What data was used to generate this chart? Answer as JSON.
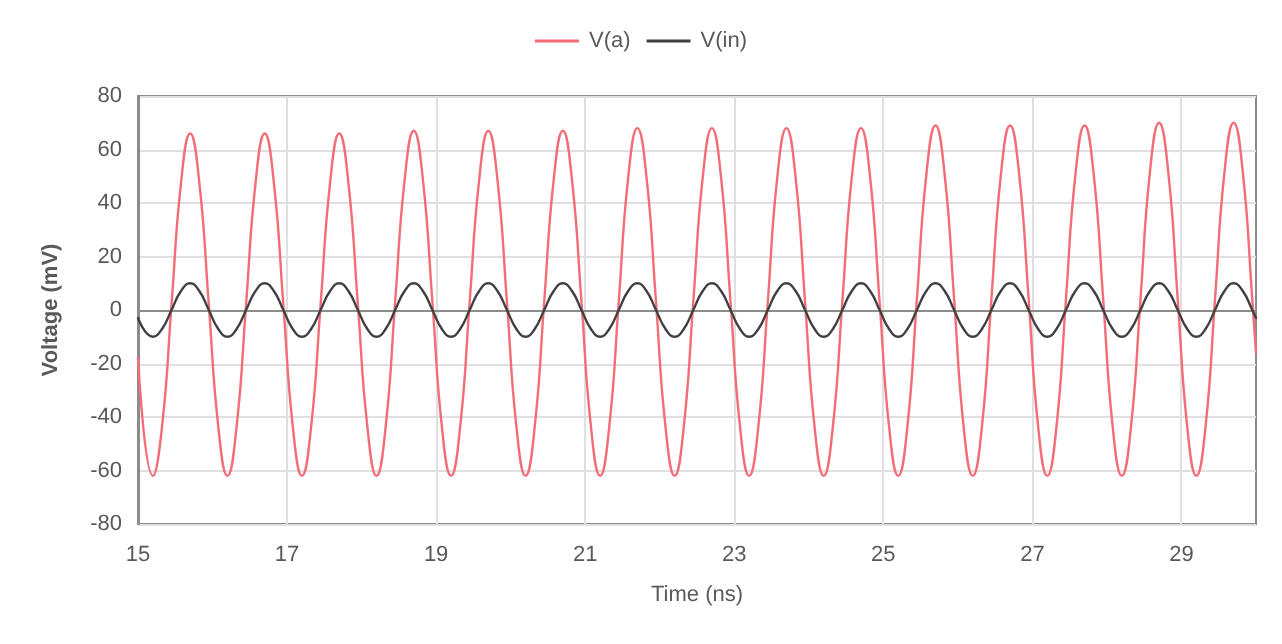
{
  "chart_data": {
    "type": "line",
    "xlabel": "Time (ns)",
    "ylabel": "Voltage (mV)",
    "xlim": [
      15,
      30
    ],
    "ylim": [
      -80,
      80
    ],
    "xticks": [
      15,
      17,
      19,
      21,
      23,
      25,
      27,
      29
    ],
    "yticks": [
      -80,
      -60,
      -40,
      -20,
      0,
      20,
      40,
      60,
      80
    ],
    "grid": true,
    "legend": "top",
    "marker": "none",
    "line_style": "solid",
    "x": [
      15,
      15.2,
      15.325,
      15.45,
      15.575,
      15.7,
      15.825,
      15.95,
      16.075,
      16.2,
      16.325,
      16.45,
      16.575,
      16.7,
      16.825,
      16.95,
      17.075,
      17.2,
      17.325,
      17.45,
      17.575,
      17.7,
      17.825,
      17.95,
      18.075,
      18.2,
      18.325,
      18.45,
      18.575,
      18.7,
      18.825,
      18.95,
      19.075,
      19.2,
      19.325,
      19.45,
      19.575,
      19.7,
      19.825,
      19.95,
      20.075,
      20.2,
      20.325,
      20.45,
      20.575,
      20.7,
      20.825,
      20.95,
      21.075,
      21.2,
      21.325,
      21.45,
      21.575,
      21.7,
      21.825,
      21.95,
      22.075,
      22.2,
      22.325,
      22.45,
      22.575,
      22.7,
      22.825,
      22.95,
      23.075,
      23.2,
      23.325,
      23.45,
      23.575,
      23.7,
      23.825,
      23.95,
      24.075,
      24.2,
      24.325,
      24.45,
      24.575,
      24.7,
      24.825,
      24.95,
      25.075,
      25.2,
      25.325,
      25.45,
      25.575,
      25.7,
      25.825,
      25.95,
      26.075,
      26.2,
      26.325,
      26.45,
      26.575,
      26.7,
      26.825,
      26.95,
      27.075,
      27.2,
      27.325,
      27.45,
      27.575,
      27.7,
      27.825,
      27.95,
      28.075,
      28.2,
      28.325,
      28.45,
      28.575,
      28.7,
      28.825,
      28.95,
      29.075,
      29.2,
      29.325,
      29.45,
      29.575,
      29.7,
      29.825,
      29.95,
      30
    ],
    "series": [
      {
        "name": "V(a)",
        "color": "#f26d78",
        "values": [
          -18,
          -62,
          -43,
          2,
          47,
          66,
          47,
          2,
          -43,
          -62,
          -43,
          2,
          47,
          66,
          47,
          2,
          -43,
          -62,
          -43,
          2,
          47,
          66,
          47,
          2,
          -43,
          -62,
          -43,
          3,
          48,
          67,
          48,
          3,
          -43,
          -62,
          -43,
          3,
          48,
          67,
          48,
          3,
          -43,
          -62,
          -43,
          3,
          48,
          67,
          48,
          3,
          -43,
          -62,
          -43,
          3,
          49,
          68,
          49,
          3,
          -43,
          -62,
          -43,
          3,
          49,
          68,
          49,
          3,
          -43,
          -62,
          -43,
          3,
          49,
          68,
          49,
          3,
          -43,
          -62,
          -43,
          3,
          49,
          68,
          49,
          3,
          -43,
          -62,
          -43,
          4,
          50,
          69,
          50,
          4,
          -43,
          -62,
          -43,
          4,
          50,
          69,
          50,
          4,
          -43,
          -62,
          -43,
          4,
          50,
          69,
          50,
          4,
          -43,
          -62,
          -43,
          4,
          51,
          70,
          51,
          4,
          -43,
          -62,
          -43,
          4,
          51,
          70,
          51,
          4,
          -16
        ]
      },
      {
        "name": "V(in)",
        "color": "#404040",
        "values": [
          -3,
          -10,
          -7,
          0,
          7,
          10,
          7,
          0,
          -7,
          -10,
          -7,
          0,
          7,
          10,
          7,
          0,
          -7,
          -10,
          -7,
          0,
          7,
          10,
          7,
          0,
          -7,
          -10,
          -7,
          0,
          7,
          10,
          7,
          0,
          -7,
          -10,
          -7,
          0,
          7,
          10,
          7,
          0,
          -7,
          -10,
          -7,
          0,
          7,
          10,
          7,
          0,
          -7,
          -10,
          -7,
          0,
          7,
          10,
          7,
          0,
          -7,
          -10,
          -7,
          0,
          7,
          10,
          7,
          0,
          -7,
          -10,
          -7,
          0,
          7,
          10,
          7,
          0,
          -7,
          -10,
          -7,
          0,
          7,
          10,
          7,
          0,
          -7,
          -10,
          -7,
          0,
          7,
          10,
          7,
          0,
          -7,
          -10,
          -7,
          0,
          7,
          10,
          7,
          0,
          -7,
          -10,
          -7,
          0,
          7,
          10,
          7,
          0,
          -7,
          -10,
          -7,
          0,
          7,
          10,
          7,
          0,
          -7,
          -10,
          -7,
          0,
          7,
          10,
          7,
          0,
          -3
        ]
      }
    ]
  }
}
